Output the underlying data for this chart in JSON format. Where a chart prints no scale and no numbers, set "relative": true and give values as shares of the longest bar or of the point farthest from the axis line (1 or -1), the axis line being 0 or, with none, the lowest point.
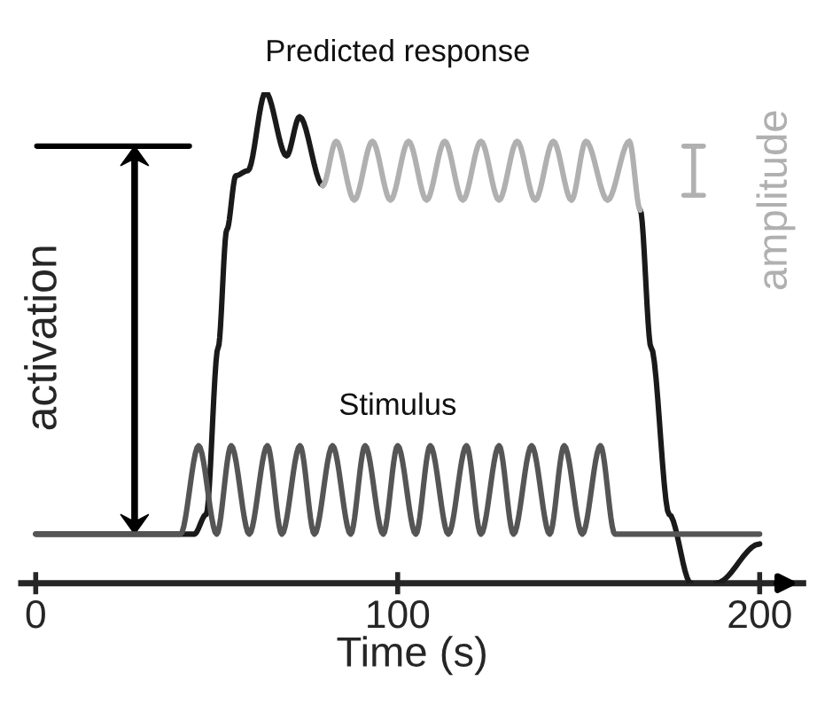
{
  "chart_data": {
    "type": "line",
    "relative": true,
    "xlabel": "Time (s)",
    "xlim": [
      -4,
      212
    ],
    "xticks": [
      0,
      100,
      200
    ],
    "grid": false,
    "legend": false,
    "tick_labels": "x",
    "annotations": [
      "activation",
      "amplitude"
    ],
    "series": [
      {
        "name": "Predicted response",
        "color": "#1a1a1a",
        "x": [
          0,
          43.8,
          47.1,
          50.4,
          52.8,
          55.3,
          58.6,
          63.5,
          69.3,
          72.9,
          79.3,
          120,
          167,
          170,
          175,
          181,
          184,
          188,
          200
        ],
        "values": [
          0.1,
          0.1,
          0.14,
          0.48,
          0.72,
          0.83,
          0.84,
          1.0,
          0.87,
          0.95,
          0.81,
          null,
          0.76,
          0.48,
          0.14,
          0.0,
          null,
          0.0,
          0.08
        ]
      },
      {
        "color": "#b0b0b0",
        "x": [
          79.3,
          83,
          88,
          93,
          98,
          103,
          108,
          113,
          118,
          123,
          128,
          133,
          138,
          143,
          148,
          152,
          158,
          164,
          167
        ],
        "values": [
          0.81,
          0.9,
          0.78,
          0.9,
          0.78,
          0.9,
          0.78,
          0.9,
          0.78,
          0.9,
          0.78,
          0.9,
          0.78,
          0.9,
          0.78,
          0.9,
          0.78,
          0.9,
          0.76
        ]
      },
      {
        "name": "Stimulus",
        "color": "#555555",
        "x": [
          0,
          40,
          45,
          50,
          54,
          59,
          64,
          68,
          73,
          77,
          82,
          87,
          91,
          96,
          100,
          105,
          109,
          114,
          119,
          123,
          128,
          132,
          137,
          142,
          146,
          151,
          156,
          160,
          200
        ],
        "values": [
          0.1,
          0.1,
          0.28,
          0.1,
          0.28,
          0.1,
          0.28,
          0.1,
          0.28,
          0.1,
          0.28,
          0.1,
          0.28,
          0.1,
          0.28,
          0.1,
          0.28,
          0.1,
          0.28,
          0.1,
          0.28,
          0.1,
          0.28,
          0.1,
          0.28,
          0.1,
          0.28,
          0.1,
          0.1
        ]
      }
    ]
  }
}
